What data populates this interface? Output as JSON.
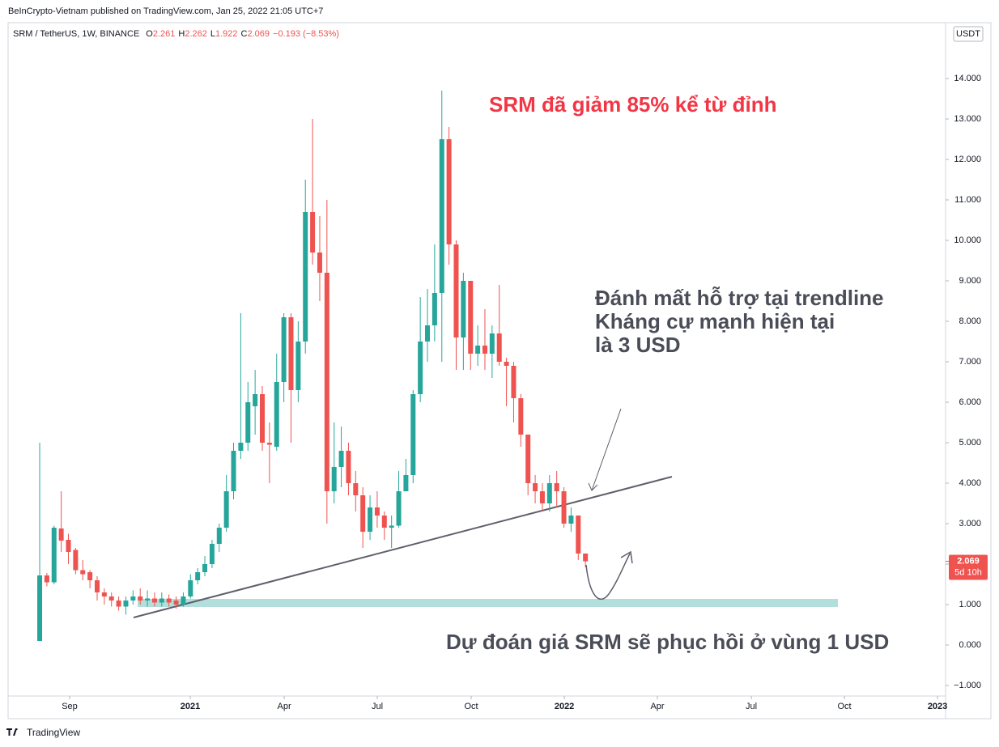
{
  "header": {
    "publisher": "BeInCrypto-Vietnam published on TradingView.com, Jan 25, 2022 21:05 UTC+7",
    "symbol": "SRM / TetherUS, 1W, BINANCE",
    "ohlc": [
      {
        "key": "O",
        "value": "2.261"
      },
      {
        "key": "H",
        "value": "2.262"
      },
      {
        "key": "L",
        "value": "1.922"
      },
      {
        "key": "C",
        "value": "2.069"
      }
    ],
    "change": "−0.193 (−8.53%)"
  },
  "footer": {
    "brand": "TradingView"
  },
  "chart_data": {
    "type": "candlestick",
    "currency": "USDT",
    "up_color": "#26a69a",
    "down_color": "#ef5350",
    "x": [
      0,
      1,
      2,
      3,
      4,
      5,
      6,
      7,
      8,
      9,
      10,
      11,
      12,
      13,
      14,
      15,
      16,
      17,
      18,
      19,
      20,
      21,
      22,
      23,
      24,
      25,
      26,
      27,
      28,
      29,
      30,
      31,
      32,
      33,
      34,
      35,
      36,
      37,
      38,
      39,
      40,
      41,
      42,
      43,
      44,
      45,
      46,
      47,
      48,
      49,
      50,
      51,
      52,
      53,
      54,
      55,
      56,
      57,
      58,
      59,
      60,
      61,
      62,
      63,
      64,
      65,
      66,
      67,
      68,
      69,
      70,
      71,
      72,
      73,
      74,
      75,
      76
    ],
    "open": [
      0.1,
      1.72,
      1.55,
      2.88,
      2.6,
      2.35,
      1.85,
      1.8,
      1.6,
      1.3,
      1.2,
      1.1,
      0.95,
      1.1,
      1.2,
      1.1,
      1.15,
      1.05,
      1.15,
      1.1,
      1.0,
      1.2,
      1.6,
      1.8,
      2.0,
      2.5,
      2.9,
      3.8,
      4.8,
      5.0,
      5.9,
      6.2,
      5.0,
      4.9,
      6.5,
      8.1,
      6.3,
      7.5,
      10.7,
      9.7,
      9.2,
      3.8,
      4.4,
      4.8,
      4.0,
      3.7,
      2.8,
      3.4,
      3.2,
      2.9,
      2.95,
      3.8,
      4.2,
      6.2,
      7.5,
      7.9,
      8.7,
      12.5,
      9.9,
      7.6,
      9.0,
      7.2,
      7.4,
      7.2,
      7.7,
      7.0,
      6.9,
      6.1,
      5.2,
      4.0,
      3.8,
      3.5,
      4.0,
      3.8,
      3.0,
      3.2,
      2.261
    ],
    "high": [
      5.0,
      1.78,
      2.95,
      3.8,
      2.75,
      2.4,
      2.1,
      1.85,
      1.7,
      1.4,
      1.3,
      1.2,
      1.2,
      1.35,
      1.4,
      1.35,
      1.3,
      1.3,
      1.25,
      1.2,
      1.3,
      1.75,
      1.9,
      2.2,
      2.6,
      3.0,
      4.2,
      5.0,
      8.2,
      6.5,
      6.8,
      6.4,
      5.5,
      7.2,
      8.2,
      8.2,
      8.0,
      11.5,
      13.0,
      10.6,
      11.0,
      5.5,
      5.4,
      5.0,
      4.3,
      3.9,
      3.7,
      3.8,
      3.3,
      3.2,
      4.3,
      4.6,
      6.3,
      8.6,
      8.8,
      9.9,
      13.7,
      12.8,
      10.0,
      9.2,
      9.0,
      7.9,
      8.3,
      7.9,
      8.9,
      7.1,
      7.0,
      6.2,
      5.2,
      4.2,
      4.0,
      4.2,
      4.3,
      3.9,
      3.4,
      3.2,
      2.262
    ],
    "low": [
      0.1,
      1.45,
      1.5,
      2.3,
      2.0,
      1.75,
      1.6,
      1.4,
      1.1,
      1.0,
      0.95,
      0.85,
      0.75,
      1.0,
      1.0,
      0.95,
      0.95,
      0.95,
      0.95,
      0.9,
      0.95,
      1.15,
      1.5,
      1.7,
      1.9,
      2.3,
      2.8,
      3.6,
      4.6,
      4.8,
      5.2,
      4.8,
      4.0,
      4.8,
      6.0,
      5.0,
      6.0,
      7.2,
      9.4,
      8.5,
      3.0,
      3.5,
      3.9,
      3.7,
      3.3,
      2.4,
      2.6,
      2.9,
      2.6,
      2.4,
      2.9,
      3.8,
      4.0,
      6.0,
      7.0,
      7.5,
      7.0,
      9.4,
      6.8,
      6.8,
      6.8,
      6.9,
      6.8,
      6.6,
      6.9,
      5.9,
      5.5,
      4.9,
      3.7,
      3.5,
      3.3,
      3.3,
      3.4,
      2.9,
      2.8,
      2.1,
      1.922
    ],
    "close": [
      1.72,
      1.55,
      2.9,
      2.58,
      2.3,
      1.85,
      1.75,
      1.6,
      1.3,
      1.2,
      1.1,
      0.95,
      1.1,
      1.2,
      1.1,
      1.15,
      1.05,
      1.15,
      1.05,
      1.0,
      1.2,
      1.6,
      1.8,
      2.0,
      2.5,
      2.9,
      3.8,
      4.8,
      5.0,
      6.0,
      6.2,
      5.0,
      4.95,
      6.5,
      8.1,
      6.3,
      7.5,
      10.7,
      9.7,
      9.2,
      3.8,
      4.4,
      4.8,
      4.0,
      3.7,
      2.8,
      3.4,
      3.2,
      2.9,
      2.95,
      3.8,
      4.2,
      6.2,
      7.5,
      7.9,
      8.7,
      12.5,
      9.9,
      7.6,
      9.0,
      7.2,
      7.4,
      7.2,
      7.7,
      7.0,
      6.9,
      6.1,
      5.2,
      4.0,
      3.8,
      3.5,
      4.0,
      3.8,
      3.0,
      3.2,
      2.261,
      2.069
    ],
    "xlim": [
      -4.4,
      126.15
    ],
    "xticks": [
      {
        "value": 4.17,
        "label": "Sep"
      },
      {
        "value": 20.97,
        "label": "2021"
      },
      {
        "value": 34.05,
        "label": "Apr"
      },
      {
        "value": 47.01,
        "label": "Jul"
      },
      {
        "value": 60.09,
        "label": "Oct"
      },
      {
        "value": 73.06,
        "label": "2022"
      },
      {
        "value": 86.02,
        "label": "Apr"
      },
      {
        "value": 99.1,
        "label": "Jul"
      },
      {
        "value": 112.06,
        "label": "Oct"
      },
      {
        "value": 125.03,
        "label": "2023"
      }
    ],
    "ylim": [
      -1.26,
      15.38
    ],
    "yticks": [
      {
        "value": -1,
        "label": "−1.000"
      },
      {
        "value": 0,
        "label": "0.000"
      },
      {
        "value": 1,
        "label": "1.000"
      },
      {
        "value": 2,
        "label": "2.000"
      },
      {
        "value": 3,
        "label": "3.000"
      },
      {
        "value": 4,
        "label": "4.000"
      },
      {
        "value": 5,
        "label": "5.000"
      },
      {
        "value": 6,
        "label": "6.000"
      },
      {
        "value": 7,
        "label": "7.000"
      },
      {
        "value": 8,
        "label": "8.000"
      },
      {
        "value": 9,
        "label": "9.000"
      },
      {
        "value": 10,
        "label": "10.000"
      },
      {
        "value": 11,
        "label": "11.000"
      },
      {
        "value": 12,
        "label": "12.000"
      },
      {
        "value": 13,
        "label": "13.000"
      },
      {
        "value": 14,
        "label": "14.000"
      }
    ],
    "price_label": {
      "value": "2.069",
      "countdown": "5d 10h"
    },
    "annotations": [
      "SRM đã giảm 85% kể từ đỉnh",
      "Đánh mất hỗ trợ tại trendline",
      "Kháng cự mạnh hiện tại",
      "là 3 USD",
      "Dự đoán giá SRM sẽ phục hồi ở vùng 1 USD"
    ]
  }
}
